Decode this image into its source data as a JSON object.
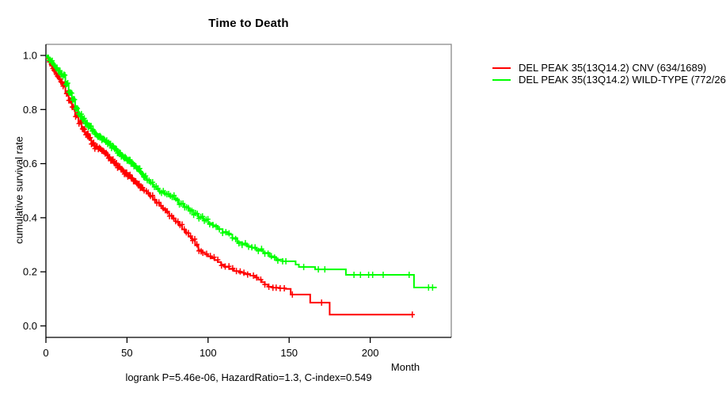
{
  "chart_data": {
    "type": "line",
    "subtype": "kaplan-meier-step",
    "title": "Time to Death",
    "xlabel": "Month",
    "ylabel": "cumulative survival rate",
    "footnote": "logrank P=5.46e-06, HazardRatio=1.3, C-index=0.549",
    "xlim": [
      0,
      250
    ],
    "ylim": [
      0.0,
      1.0
    ],
    "x_ticks": [
      0,
      50,
      100,
      150,
      200
    ],
    "y_ticks": [
      0.0,
      0.2,
      0.4,
      0.6,
      0.8,
      1.0
    ],
    "grid": false,
    "legend_position": "right-outside",
    "box_color": "#888888",
    "axis_color": "#000000",
    "series": [
      {
        "name": "DEL PEAK 35(13Q14.2) CNV (634/1689)",
        "color": "#ff0000",
        "end_month": 226,
        "steps": [
          [
            0,
            1.0
          ],
          [
            1,
            0.99
          ],
          [
            2,
            0.978
          ],
          [
            3,
            0.966
          ],
          [
            4,
            0.955
          ],
          [
            5,
            0.945
          ],
          [
            6,
            0.934
          ],
          [
            7,
            0.923
          ],
          [
            8,
            0.912
          ],
          [
            9,
            0.901
          ],
          [
            10,
            0.89
          ],
          [
            12,
            0.862
          ],
          [
            14,
            0.834
          ],
          [
            16,
            0.806
          ],
          [
            18,
            0.778
          ],
          [
            20,
            0.752
          ],
          [
            22,
            0.73
          ],
          [
            24,
            0.71
          ],
          [
            26,
            0.692
          ],
          [
            28,
            0.675
          ],
          [
            30,
            0.66
          ],
          [
            32,
            0.658
          ],
          [
            34,
            0.648
          ],
          [
            36,
            0.636
          ],
          [
            38,
            0.624
          ],
          [
            40,
            0.612
          ],
          [
            42,
            0.6
          ],
          [
            44,
            0.589
          ],
          [
            46,
            0.578
          ],
          [
            48,
            0.566
          ],
          [
            50,
            0.555
          ],
          [
            52,
            0.545
          ],
          [
            54,
            0.534
          ],
          [
            56,
            0.523
          ],
          [
            58,
            0.512
          ],
          [
            60,
            0.5
          ],
          [
            62,
            0.489
          ],
          [
            64,
            0.478
          ],
          [
            66,
            0.466
          ],
          [
            68,
            0.455
          ],
          [
            70,
            0.444
          ],
          [
            72,
            0.432
          ],
          [
            74,
            0.42
          ],
          [
            76,
            0.408
          ],
          [
            78,
            0.396
          ],
          [
            80,
            0.384
          ],
          [
            82,
            0.371
          ],
          [
            84,
            0.357
          ],
          [
            86,
            0.343
          ],
          [
            88,
            0.33
          ],
          [
            90,
            0.317
          ],
          [
            92,
            0.298
          ],
          [
            94,
            0.28
          ],
          [
            96,
            0.272
          ],
          [
            98,
            0.264
          ],
          [
            100,
            0.257
          ],
          [
            102,
            0.25
          ],
          [
            104,
            0.243
          ],
          [
            106,
            0.236
          ],
          [
            108,
            0.227
          ],
          [
            110,
            0.218
          ],
          [
            113,
            0.21
          ],
          [
            116,
            0.203
          ],
          [
            119,
            0.197
          ],
          [
            122,
            0.192
          ],
          [
            126,
            0.186
          ],
          [
            129,
            0.179
          ],
          [
            131,
            0.171
          ],
          [
            133,
            0.162
          ],
          [
            135,
            0.153
          ],
          [
            137,
            0.145
          ],
          [
            140,
            0.141
          ],
          [
            144,
            0.139
          ],
          [
            148,
            0.137
          ],
          [
            151,
            0.116
          ],
          [
            163,
            0.086
          ],
          [
            175,
            0.042
          ],
          [
            226,
            0.042
          ]
        ],
        "censor_dense": [
          {
            "from": 1.5,
            "to": 60,
            "step": 0.7
          },
          {
            "from": 60.6,
            "to": 96,
            "step": 1.3
          },
          {
            "from": 96.8,
            "to": 126,
            "step": 2.3
          }
        ],
        "censor_marks": [
          128,
          130,
          132.5,
          135,
          137.5,
          140,
          142,
          144.5,
          147,
          152,
          170,
          226
        ]
      },
      {
        "name": "DEL PEAK 35(13Q14.2) WILD-TYPE (772/26",
        "color": "#00ff00",
        "end_month": 241,
        "steps": [
          [
            0,
            1.0
          ],
          [
            1,
            0.993
          ],
          [
            2,
            0.985
          ],
          [
            3,
            0.976
          ],
          [
            4,
            0.968
          ],
          [
            5,
            0.961
          ],
          [
            6,
            0.954
          ],
          [
            7,
            0.947
          ],
          [
            8,
            0.94
          ],
          [
            9,
            0.932
          ],
          [
            10,
            0.925
          ],
          [
            12,
            0.895
          ],
          [
            14,
            0.865
          ],
          [
            16,
            0.836
          ],
          [
            18,
            0.807
          ],
          [
            20,
            0.78
          ],
          [
            22,
            0.765
          ],
          [
            24,
            0.75
          ],
          [
            26,
            0.735
          ],
          [
            28,
            0.721
          ],
          [
            30,
            0.708
          ],
          [
            32,
            0.699
          ],
          [
            34,
            0.692
          ],
          [
            36,
            0.684
          ],
          [
            38,
            0.673
          ],
          [
            40,
            0.662
          ],
          [
            42,
            0.652
          ],
          [
            44,
            0.641
          ],
          [
            46,
            0.63
          ],
          [
            48,
            0.62
          ],
          [
            50,
            0.61
          ],
          [
            52,
            0.6
          ],
          [
            54,
            0.59
          ],
          [
            56,
            0.578
          ],
          [
            58,
            0.565
          ],
          [
            60,
            0.552
          ],
          [
            62,
            0.54
          ],
          [
            64,
            0.527
          ],
          [
            66,
            0.515
          ],
          [
            68,
            0.505
          ],
          [
            70,
            0.495
          ],
          [
            73,
            0.487
          ],
          [
            76,
            0.478
          ],
          [
            79,
            0.468
          ],
          [
            82,
            0.452
          ],
          [
            85,
            0.44
          ],
          [
            88,
            0.428
          ],
          [
            91,
            0.415
          ],
          [
            94,
            0.4
          ],
          [
            97,
            0.39
          ],
          [
            100,
            0.38
          ],
          [
            103,
            0.37
          ],
          [
            106,
            0.358
          ],
          [
            109,
            0.348
          ],
          [
            112,
            0.338
          ],
          [
            115,
            0.325
          ],
          [
            118,
            0.31
          ],
          [
            121,
            0.302
          ],
          [
            124,
            0.295
          ],
          [
            127,
            0.288
          ],
          [
            130,
            0.28
          ],
          [
            134,
            0.27
          ],
          [
            138,
            0.255
          ],
          [
            142,
            0.245
          ],
          [
            146,
            0.239
          ],
          [
            154,
            0.227
          ],
          [
            156,
            0.218
          ],
          [
            166,
            0.209
          ],
          [
            185,
            0.189
          ],
          [
            227,
            0.142
          ],
          [
            241,
            0.142
          ]
        ],
        "censor_dense": [
          {
            "from": 1.5,
            "to": 62,
            "step": 0.6
          },
          {
            "from": 62.5,
            "to": 100,
            "step": 1.1
          },
          {
            "from": 101,
            "to": 144,
            "step": 2.0
          }
        ],
        "censor_marks": [
          146,
          148,
          159,
          168,
          172,
          190,
          194,
          199,
          201.5,
          208,
          224,
          236,
          238.5
        ]
      }
    ]
  }
}
